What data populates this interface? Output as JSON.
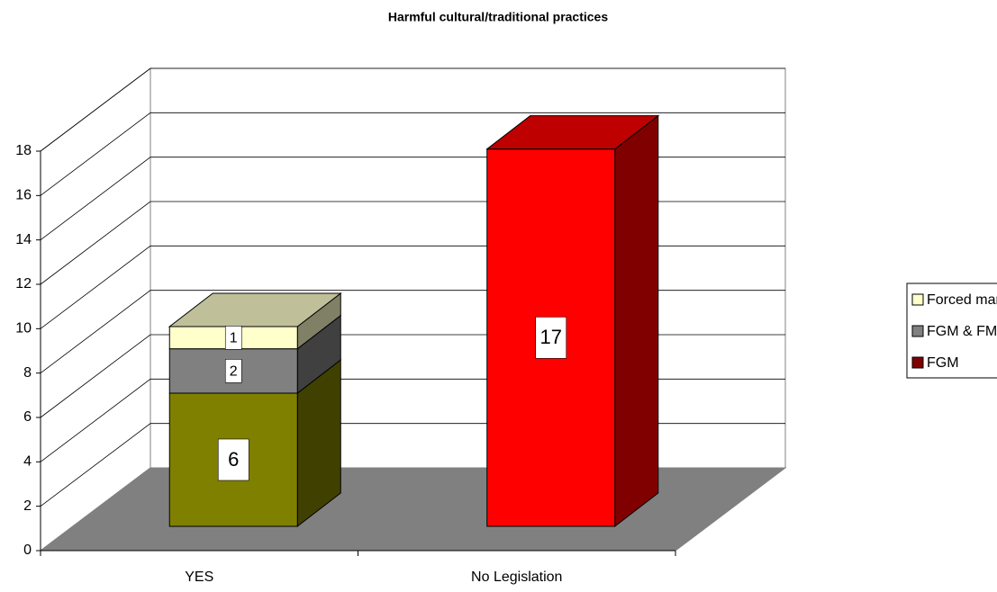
{
  "chart_data": {
    "type": "bar3d",
    "title": "Harmful cultural/traditional practices",
    "categories": [
      "YES",
      "No Legislation"
    ],
    "series": [
      {
        "name": "FGM",
        "color": "#800000",
        "colors": [
          "#808000",
          "#ff0000"
        ],
        "values": [
          6,
          17
        ]
      },
      {
        "name": "FGM & FM",
        "color": "#808080",
        "colors": [
          "#808080",
          "#808080"
        ],
        "values": [
          2,
          null
        ]
      },
      {
        "name": "Forced marriage",
        "color": "#ffffcc",
        "colors": [
          "#ffffcc",
          "#ffffcc"
        ],
        "values": [
          1,
          null
        ]
      }
    ],
    "stacked": true,
    "ylim": [
      0,
      18
    ],
    "yticks": [
      0,
      2,
      4,
      6,
      8,
      10,
      12,
      14,
      16,
      18
    ],
    "grid": true,
    "legend": "right"
  }
}
